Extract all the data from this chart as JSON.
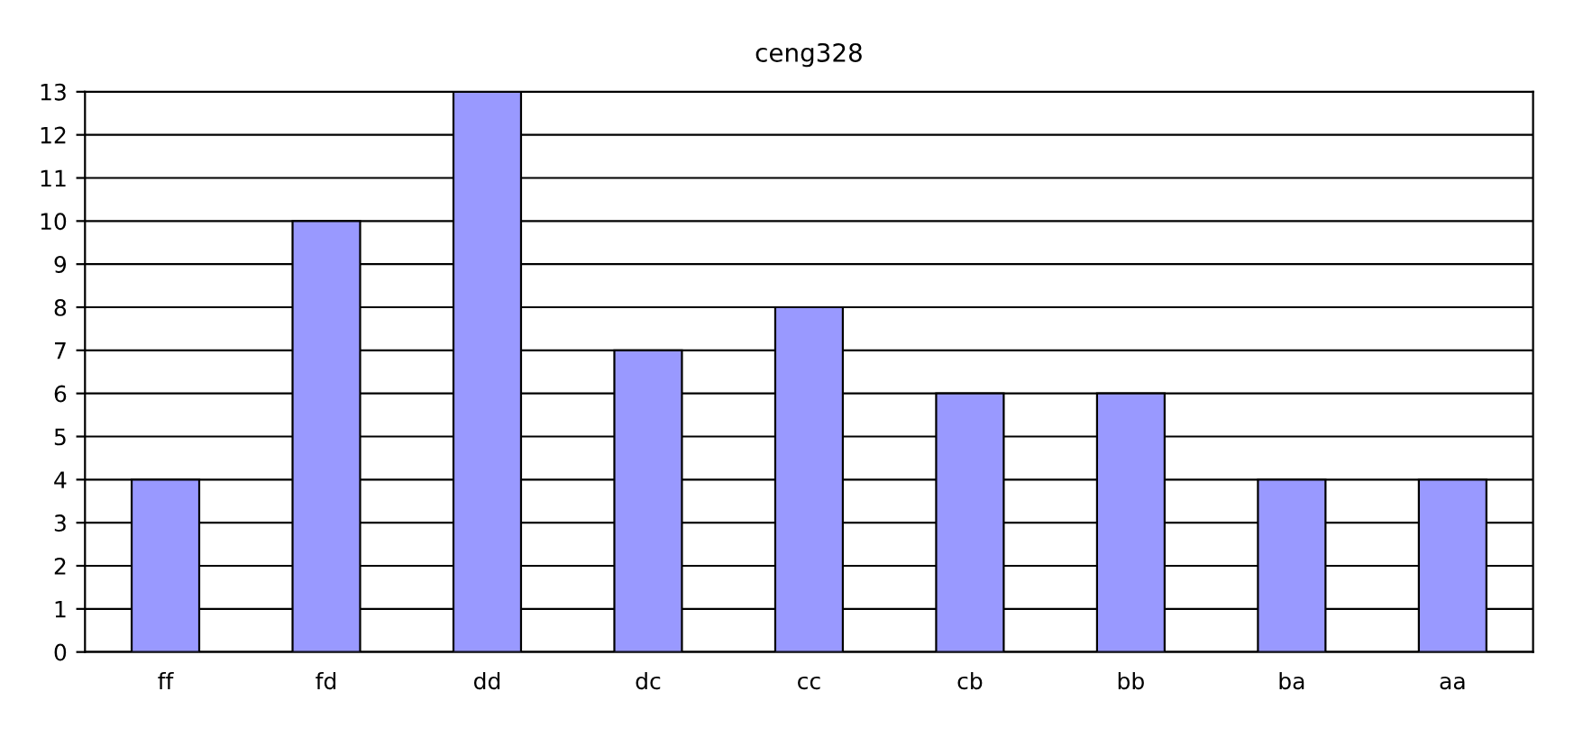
{
  "chart_data": {
    "type": "bar",
    "title": "ceng328",
    "categories": [
      "ff",
      "fd",
      "dd",
      "dc",
      "cc",
      "cb",
      "bb",
      "ba",
      "aa"
    ],
    "values": [
      4,
      10,
      13,
      7,
      8,
      6,
      6,
      4,
      4
    ],
    "color": "#9999ff",
    "ylim": [
      0,
      13
    ],
    "yticks": [
      0,
      1,
      2,
      3,
      4,
      5,
      6,
      7,
      8,
      9,
      10,
      11,
      12,
      13
    ],
    "grid": "y",
    "legend": false
  }
}
